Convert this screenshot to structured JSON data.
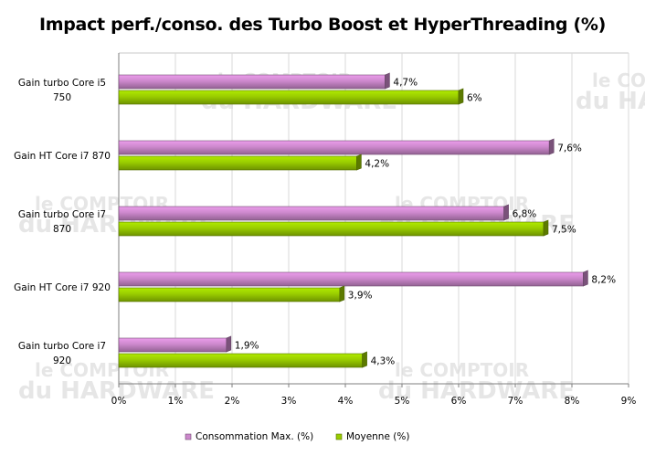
{
  "chart_data": {
    "type": "bar",
    "orientation": "horizontal",
    "title": "Impact perf./conso. des Turbo Boost et HyperThreading (%)",
    "categories": [
      [
        "Gain turbo Core i5",
        "750"
      ],
      [
        "Gain HT Core i7 870"
      ],
      [
        "Gain turbo Core i7",
        "870"
      ],
      [
        "Gain HT Core i7 920"
      ],
      [
        "Gain turbo Core i7",
        "920"
      ]
    ],
    "series": [
      {
        "name": "Consommation  Max. (%)",
        "values": [
          4.7,
          7.6,
          6.8,
          8.2,
          1.9
        ],
        "labels": [
          "4,7%",
          "7,6%",
          "6,8%",
          "8,2%",
          "1,9%"
        ],
        "color": "#cc88cc"
      },
      {
        "name": "Moyenne (%)",
        "values": [
          6.0,
          4.2,
          7.5,
          3.9,
          4.3
        ],
        "labels": [
          "6%",
          "4,2%",
          "7,5%",
          "3,9%",
          "4,3%"
        ],
        "color": "#99cc00"
      }
    ],
    "xlim": [
      0,
      9
    ],
    "xticks": [
      "0%",
      "1%",
      "2%",
      "3%",
      "4%",
      "5%",
      "6%",
      "7%",
      "8%",
      "9%"
    ],
    "grid": true,
    "legend_position": "bottom"
  },
  "watermark": {
    "line1": "le COMPTOIR",
    "line2": "du HARDWARE"
  }
}
